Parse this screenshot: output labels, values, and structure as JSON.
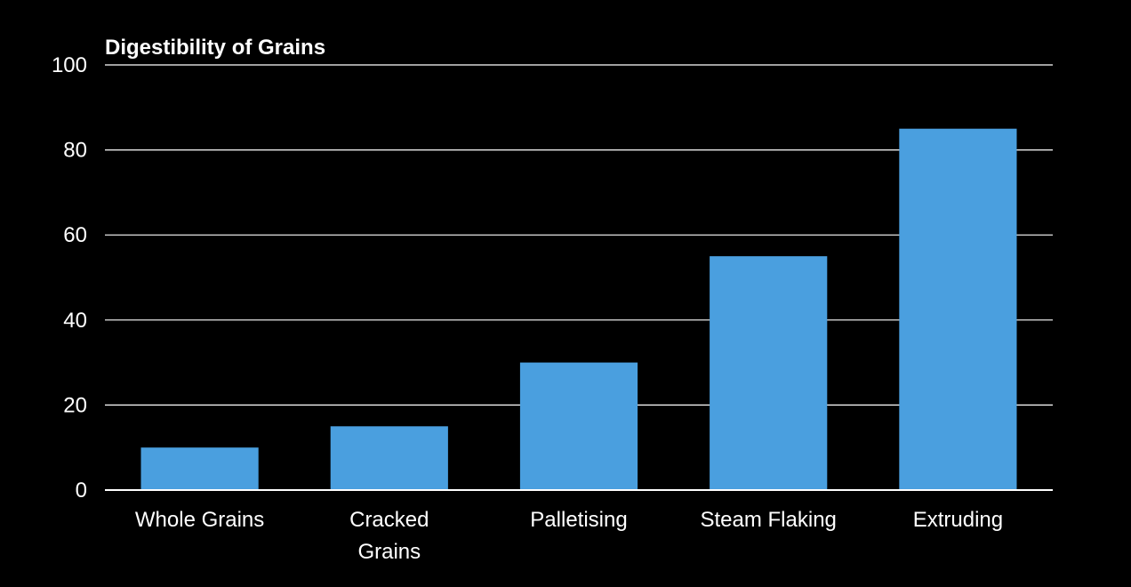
{
  "chart_data": {
    "type": "bar",
    "title": "Digestibility of Grains",
    "xlabel": "",
    "ylabel": "",
    "categories": [
      [
        "Whole Grains"
      ],
      [
        "Cracked",
        "Grains"
      ],
      [
        "Palletising"
      ],
      [
        "Steam Flaking"
      ],
      [
        "Extruding"
      ]
    ],
    "values": [
      10,
      15,
      30,
      55,
      85
    ],
    "ylim": [
      0,
      100
    ],
    "yticks": [
      0,
      20,
      40,
      60,
      80,
      100
    ],
    "grid": true,
    "legend": "none",
    "colors": {
      "background": "#000000",
      "bar": "#4a9fdf",
      "grid": "#ffffff",
      "text": "#ffffff"
    }
  }
}
